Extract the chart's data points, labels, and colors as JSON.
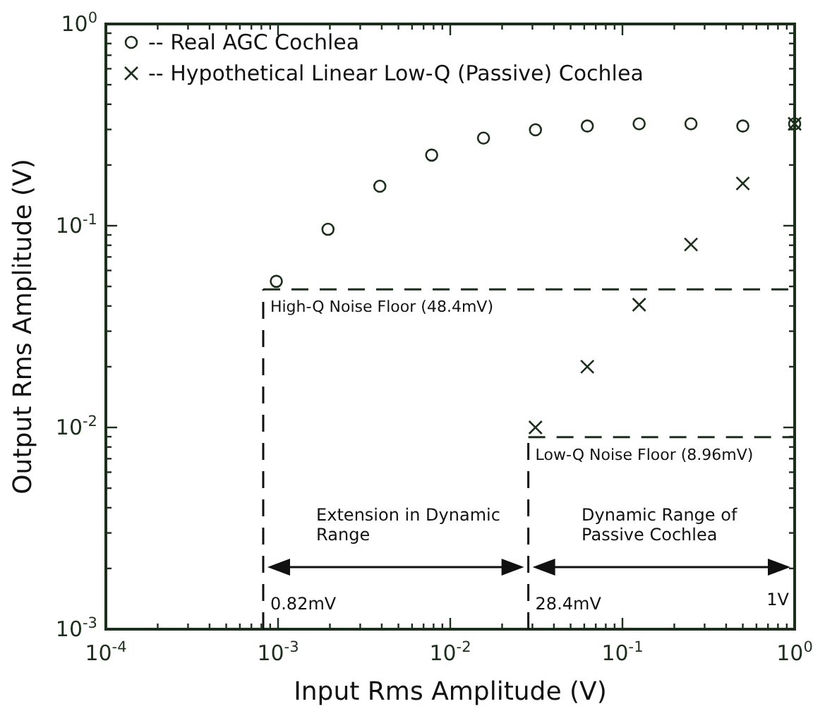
{
  "chart_data": {
    "type": "scatter",
    "xlabel": "Input Rms Amplitude (V)",
    "ylabel": "Output Rms Amplitude (V)",
    "log": "xy",
    "grid": false,
    "legend": "top left",
    "xlim": [
      0.0001,
      1
    ],
    "ylim": [
      0.001,
      1
    ],
    "xticks": [
      {
        "value": 0.0001,
        "label": "10$^{-4}$"
      },
      {
        "value": 0.0002,
        "label": null
      },
      {
        "value": 0.0003,
        "label": null
      },
      {
        "value": 0.0004,
        "label": null
      },
      {
        "value": 0.0005,
        "label": null
      },
      {
        "value": 0.0006,
        "label": null
      },
      {
        "value": 0.0007,
        "label": null
      },
      {
        "value": 0.0008,
        "label": null
      },
      {
        "value": 0.0009,
        "label": null
      },
      {
        "value": 0.001,
        "label": "10$^{-3}$"
      },
      {
        "value": 0.002,
        "label": null
      },
      {
        "value": 0.003,
        "label": null
      },
      {
        "value": 0.004,
        "label": null
      },
      {
        "value": 0.005,
        "label": null
      },
      {
        "value": 0.006,
        "label": null
      },
      {
        "value": 0.007,
        "label": null
      },
      {
        "value": 0.008,
        "label": null
      },
      {
        "value": 0.009,
        "label": null
      },
      {
        "value": 0.01,
        "label": "10$^{-2}$"
      },
      {
        "value": 0.02,
        "label": null
      },
      {
        "value": 0.03,
        "label": null
      },
      {
        "value": 0.04,
        "label": null
      },
      {
        "value": 0.05,
        "label": null
      },
      {
        "value": 0.06,
        "label": null
      },
      {
        "value": 0.07,
        "label": null
      },
      {
        "value": 0.08,
        "label": null
      },
      {
        "value": 0.09,
        "label": null
      },
      {
        "value": 0.1,
        "label": "10$^{-1}$"
      },
      {
        "value": 0.2,
        "label": null
      },
      {
        "value": 0.3,
        "label": null
      },
      {
        "value": 0.4,
        "label": null
      },
      {
        "value": 0.5,
        "label": null
      },
      {
        "value": 0.6,
        "label": null
      },
      {
        "value": 0.7,
        "label": null
      },
      {
        "value": 0.8,
        "label": null
      },
      {
        "value": 0.9,
        "label": null
      },
      {
        "value": 1,
        "label": "10$^{0}$"
      }
    ],
    "yticks": [
      {
        "value": 0.001,
        "label": "10$^{-3}$"
      },
      {
        "value": 0.002,
        "label": null
      },
      {
        "value": 0.003,
        "label": null
      },
      {
        "value": 0.004,
        "label": null
      },
      {
        "value": 0.005,
        "label": null
      },
      {
        "value": 0.006,
        "label": null
      },
      {
        "value": 0.007,
        "label": null
      },
      {
        "value": 0.008,
        "label": null
      },
      {
        "value": 0.009,
        "label": null
      },
      {
        "value": 0.01,
        "label": "10$^{-2}$"
      },
      {
        "value": 0.02,
        "label": null
      },
      {
        "value": 0.03,
        "label": null
      },
      {
        "value": 0.04,
        "label": null
      },
      {
        "value": 0.05,
        "label": null
      },
      {
        "value": 0.06,
        "label": null
      },
      {
        "value": 0.07,
        "label": null
      },
      {
        "value": 0.08,
        "label": null
      },
      {
        "value": 0.09,
        "label": null
      },
      {
        "value": 0.1,
        "label": "10$^{-1}$"
      },
      {
        "value": 0.2,
        "label": null
      },
      {
        "value": 0.3,
        "label": null
      },
      {
        "value": 0.4,
        "label": null
      },
      {
        "value": 0.5,
        "label": null
      },
      {
        "value": 0.6,
        "label": null
      },
      {
        "value": 0.7,
        "label": null
      },
      {
        "value": 0.8,
        "label": null
      },
      {
        "value": 0.9,
        "label": null
      },
      {
        "value": 1,
        "label": "10$^{0}$"
      }
    ],
    "series": [
      {
        "name": "-- Real AGC Cochlea",
        "color": "#1c2e1c",
        "marker": "circle",
        "x": [
          0.000977,
          0.00195,
          0.0039,
          0.0078,
          0.0156,
          0.03125,
          0.0625,
          0.125,
          0.25,
          0.5,
          1
        ],
        "values": [
          0.053,
          0.096,
          0.157,
          0.224,
          0.272,
          0.299,
          0.312,
          0.32,
          0.32,
          0.312,
          0.32
        ]
      },
      {
        "name": "-- Hypothetical Linear Low-Q (Passive) Cochlea",
        "color": "#1c2e1c",
        "marker": "cross",
        "x": [
          0.03125,
          0.0625,
          0.125,
          0.25,
          0.5,
          1
        ],
        "values": [
          0.01,
          0.02,
          0.0406,
          0.0807,
          0.162,
          0.32
        ]
      }
    ],
    "ref_lines": [
      {
        "axis": "y",
        "value": 0.0484,
        "label": "High-Q Noise Floor  (48.4mV)",
        "line_style": "dashed",
        "color": "#1c2e1c"
      },
      {
        "axis": "y",
        "value": 0.00896,
        "label": "Low-Q Noise Floor (8.96mV)",
        "line_style": "dashed",
        "color": "#1c2e1c"
      },
      {
        "axis": "x",
        "value": 0.00082,
        "label": "0.82mV",
        "line_style": "dashed"
      },
      {
        "axis": "x",
        "value": 0.0284,
        "label": "28.4mV",
        "line_style": "dashed"
      }
    ],
    "annotations": [
      "Extension in Dynamic Range",
      "Dynamic Range of Passive Cochlea",
      "1V"
    ]
  }
}
